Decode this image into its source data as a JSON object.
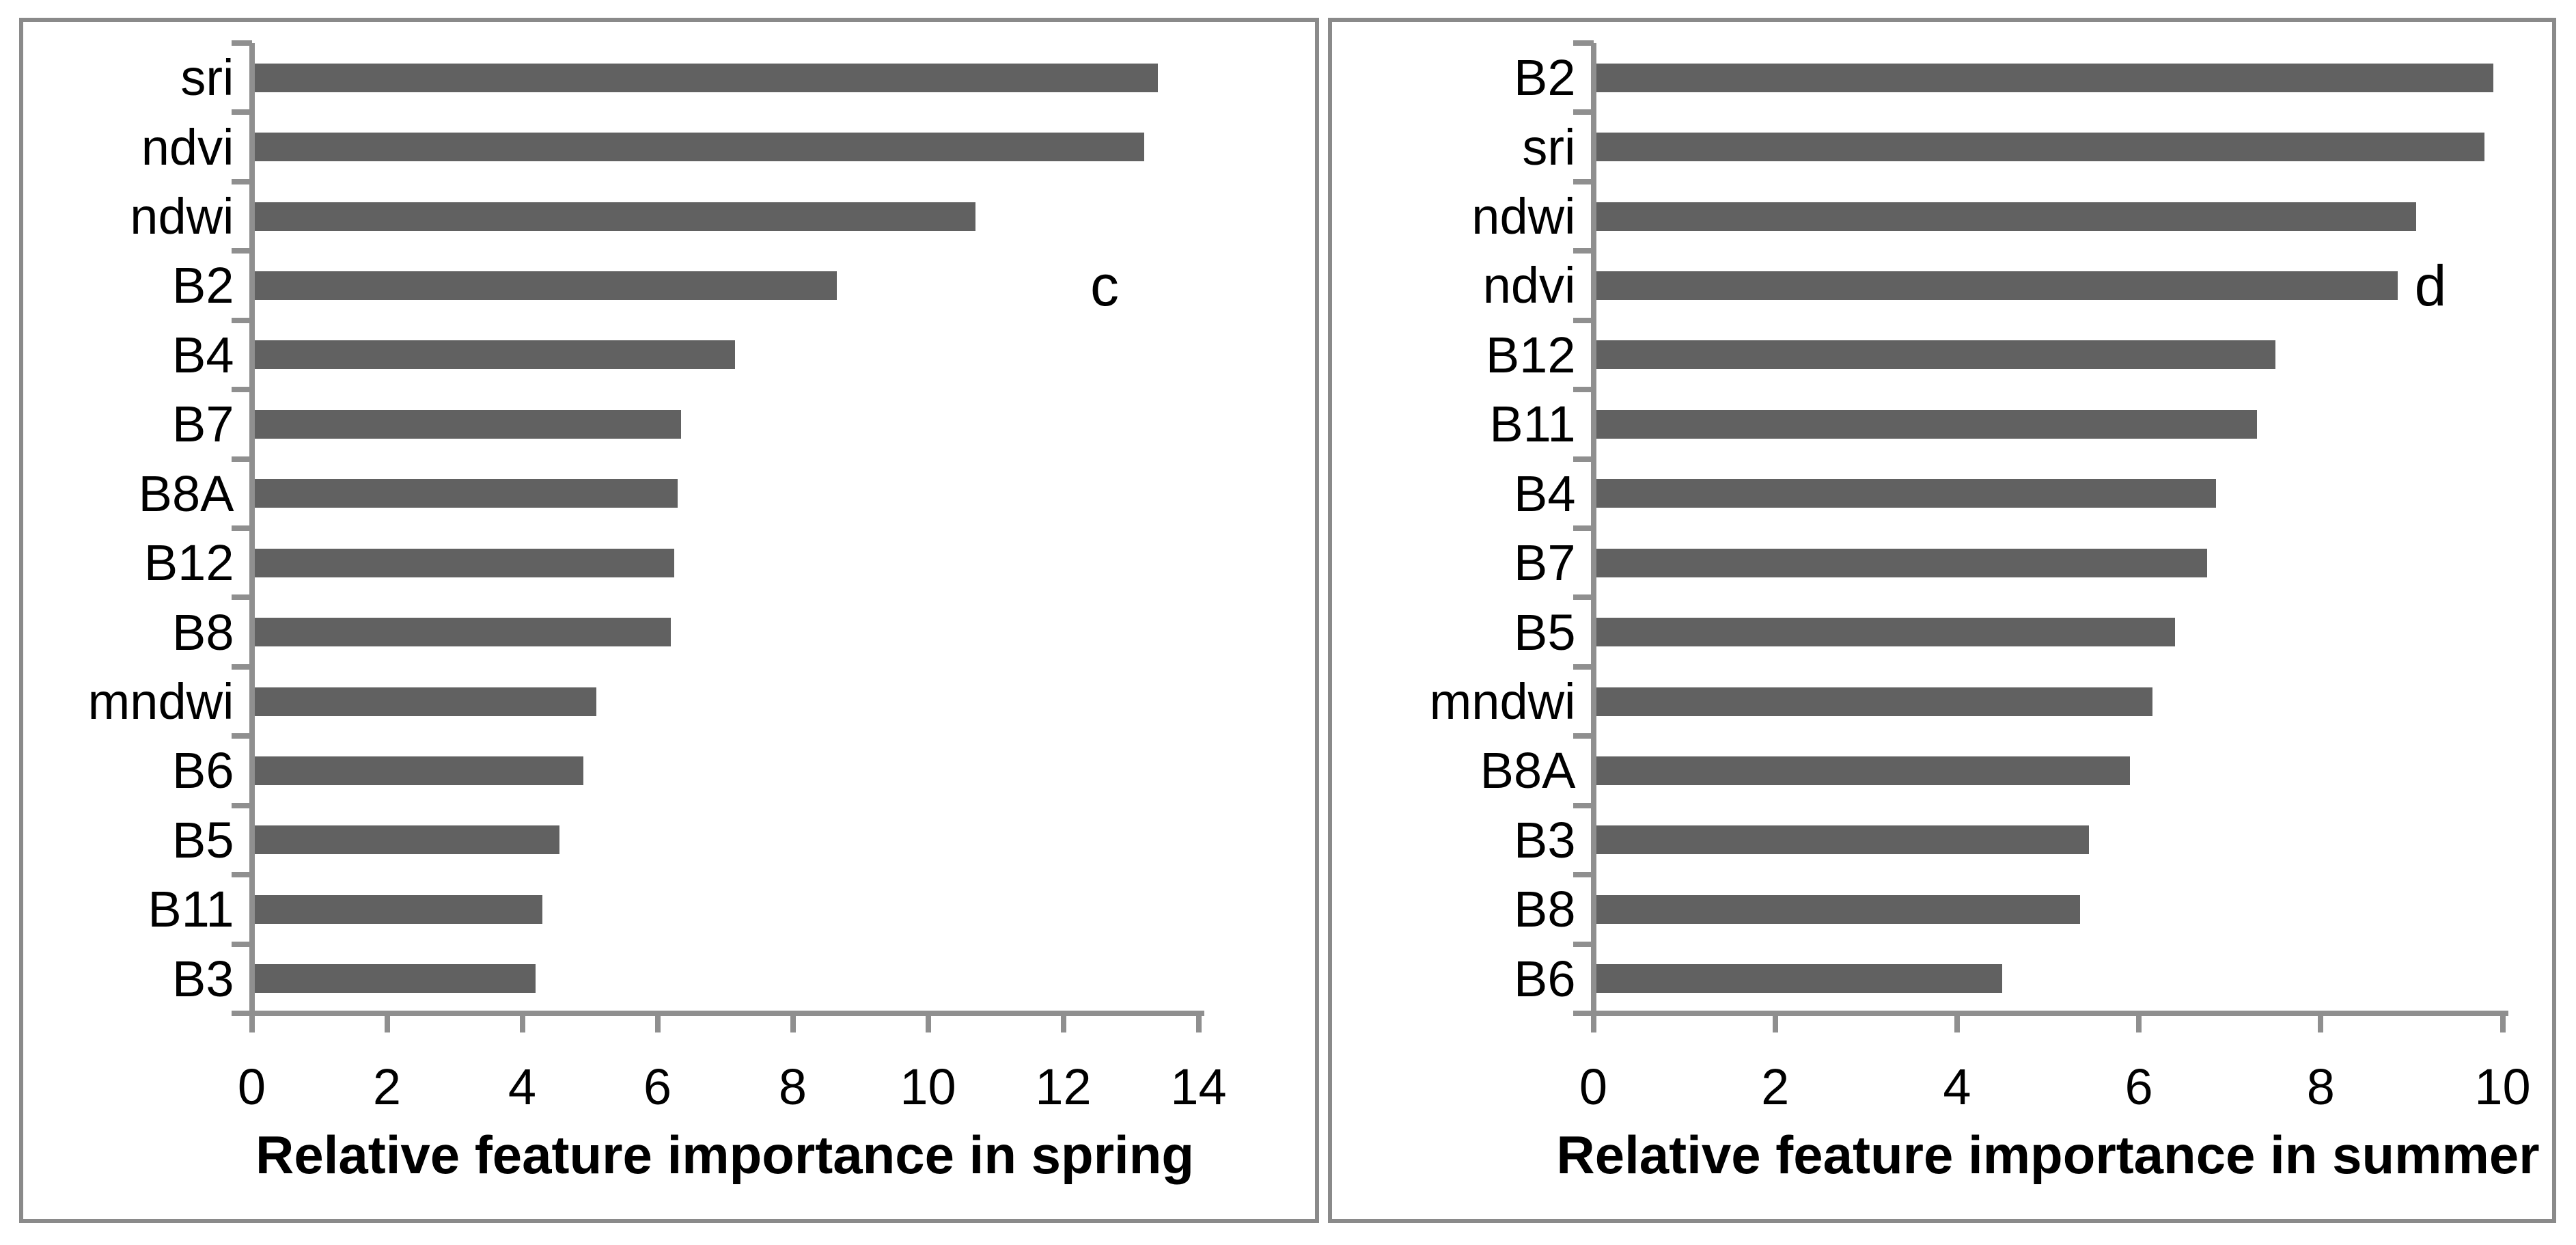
{
  "figure": {
    "background_color": "#ffffff",
    "bar_color": "#616161",
    "axis_color": "#8f8f8f",
    "panel_border_color": "#8a8a8a",
    "text_color": "#000000"
  },
  "chart_data": [
    {
      "type": "bar",
      "orientation": "horizontal",
      "panel_letter": "c",
      "title": "",
      "xlabel": "Relative feature importance in spring",
      "ylabel": "",
      "categories": [
        "sri",
        "ndvi",
        "ndwi",
        "B2",
        "B4",
        "B7",
        "B8A",
        "B12",
        "B8",
        "mndwi",
        "B6",
        "B5",
        "B11",
        "B3"
      ],
      "values": [
        13.4,
        13.2,
        10.7,
        8.65,
        7.15,
        6.35,
        6.3,
        6.25,
        6.2,
        5.1,
        4.9,
        4.55,
        4.3,
        4.2
      ],
      "xlim": [
        0,
        14
      ],
      "xticks": [
        0,
        2,
        4,
        6,
        8,
        10,
        12,
        14
      ],
      "grid": false,
      "legend": null
    },
    {
      "type": "bar",
      "orientation": "horizontal",
      "panel_letter": "d",
      "title": "",
      "xlabel": "Relative feature importance in summer",
      "ylabel": "",
      "categories": [
        "B2",
        "sri",
        "ndwi",
        "ndvi",
        "B12",
        "B11",
        "B4",
        "B7",
        "B5",
        "mndwi",
        "B8A",
        "B3",
        "B8",
        "B6"
      ],
      "values": [
        9.9,
        9.8,
        9.05,
        8.85,
        7.5,
        7.3,
        6.85,
        6.75,
        6.4,
        6.15,
        5.9,
        5.45,
        5.35,
        4.5
      ],
      "xlim": [
        0,
        10
      ],
      "xticks": [
        0,
        2,
        4,
        6,
        8,
        10
      ],
      "grid": false,
      "legend": null
    }
  ]
}
